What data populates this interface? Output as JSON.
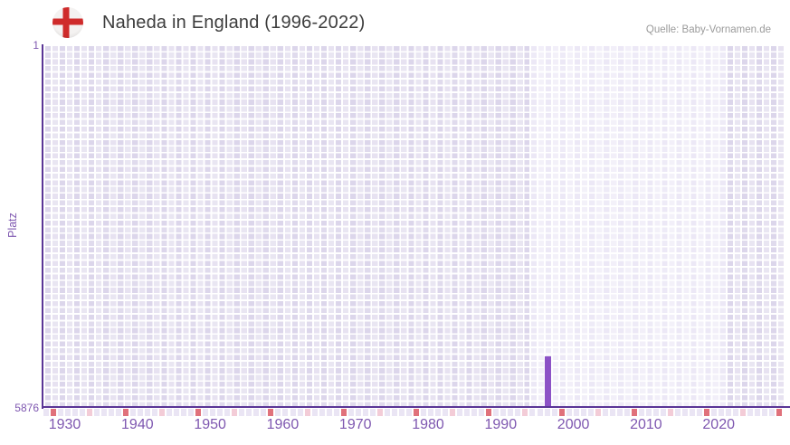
{
  "header": {
    "title": "Naheda in England (1996-2022)",
    "source": "Quelle: Baby-Vornamen.de"
  },
  "chart_data": {
    "type": "bar",
    "title": "Naheda in England (1996-2022)",
    "ylabel": "Platz",
    "xlabel": "",
    "grid": true,
    "legend": false,
    "y_axis": {
      "top_tick_label": "1",
      "bottom_tick_label": "5876",
      "min": 1,
      "max": 5876,
      "inverted": true
    },
    "x_axis": {
      "first_year": 1929,
      "last_year": 2030,
      "labeled_decades": [
        1930,
        1940,
        1950,
        1960,
        1970,
        1980,
        1990,
        2000,
        2010,
        2020
      ]
    },
    "highlighted_year_range": {
      "from": 1996,
      "to": 2022
    },
    "series": [
      {
        "name": "Naheda",
        "points": [
          {
            "year": 1998,
            "platz": 5050
          }
        ]
      }
    ],
    "colors": {
      "bar": "#8c52c6",
      "axis": "#5a3596",
      "tick_decade": "#e0717b",
      "tick_half_decade": "#f3ccd7",
      "tick_plain": "#eae5f4",
      "grid_zone_outside": "#dcd6eb",
      "grid_zone_data": "#ece8f6",
      "tick_label_text": "#7e57b0",
      "title_text": "#3d3d3d",
      "source_text": "#9b9b9b",
      "flag_red": "#cf2b2b"
    }
  }
}
